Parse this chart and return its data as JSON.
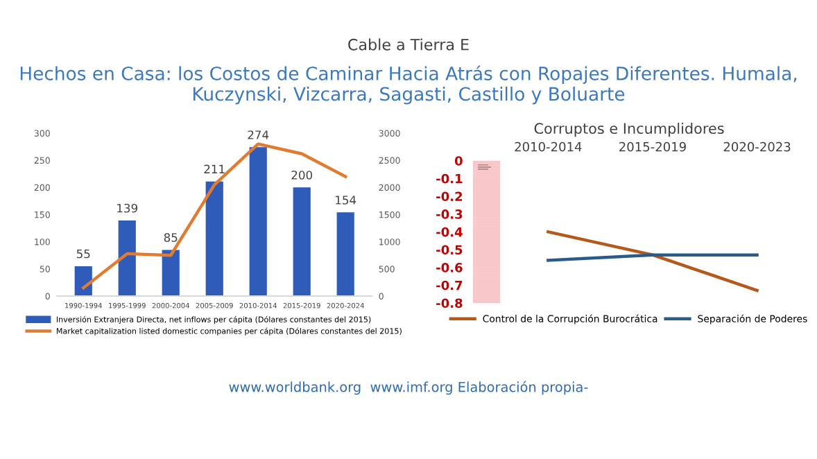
{
  "chart_data": [
    {
      "type": "bar",
      "title": "Hechos en Casa: los Costos de Caminar Hacia Atrás con Ropajes Diferentes. Humala, Kuczynski, Vizcarra, Sagasti, Castillo y Boluarte",
      "subtitle": "Cable a Tierra E",
      "categories": [
        "1990-1994",
        "1995-1999",
        "2000-2004",
        "2005-2009",
        "2010-2014",
        "2015-2019",
        "2020-2024"
      ],
      "series": [
        {
          "name": "Inversión Extranjera Directa, net inflows per cápita (Dólares constantes del 2015)",
          "color": "#2e5cb8",
          "values": [
            55,
            139,
            85,
            211,
            274,
            200,
            154
          ],
          "value_labels": [
            "55",
            "139",
            "85",
            "211",
            "274",
            "200",
            "154"
          ]
        },
        {
          "name": "Market capitalization listed domestic companies per cápita (Dólares constantes del 2015)",
          "type": "line",
          "axis": "y2",
          "color": "#e07b30",
          "values": [
            150,
            780,
            750,
            2050,
            2800,
            2620,
            2200
          ]
        }
      ],
      "ylim": [
        0,
        300
      ],
      "yticks": [
        0,
        50,
        100,
        150,
        200,
        250,
        300
      ],
      "y2lim": [
        0,
        3000
      ],
      "y2ticks": [
        0,
        500,
        1000,
        1500,
        2000,
        2500,
        3000
      ],
      "legend": "bottom",
      "grid": false,
      "annotations": [
        "www.worldbank.org  www.imf.org Elaboración propia-"
      ]
    },
    {
      "type": "line",
      "title": "Corruptos e Incumplidores",
      "categories": [
        "2010-2014",
        "2015-2019",
        "2020-2023"
      ],
      "series": [
        {
          "name": "Control de la Corrupción Burocrática",
          "color": "#b5581a",
          "values": [
            -0.4,
            -0.53,
            -0.73
          ]
        },
        {
          "name": "Separación de Poderes",
          "color": "#2a5a8a",
          "values": [
            -0.56,
            -0.53,
            -0.53
          ]
        }
      ],
      "ylim": [
        -0.8,
        0
      ],
      "yticks": [
        {
          "value": 0,
          "label": "0"
        },
        {
          "value": -0.1,
          "label": "-0.1"
        },
        {
          "value": -0.2,
          "label": "-0.2"
        },
        {
          "value": -0.3,
          "label": "-0.3"
        },
        {
          "value": -0.4,
          "label": "-0.4"
        },
        {
          "value": -0.5,
          "label": "-0.5"
        },
        {
          "value": -0.6,
          "label": "-0.6"
        },
        {
          "value": -0.7,
          "label": "-0.7"
        },
        {
          "value": -0.8,
          "label": "-0.8"
        }
      ],
      "legend": "bottom",
      "grid": false,
      "marker": "none",
      "line_style": "solid"
    }
  ]
}
